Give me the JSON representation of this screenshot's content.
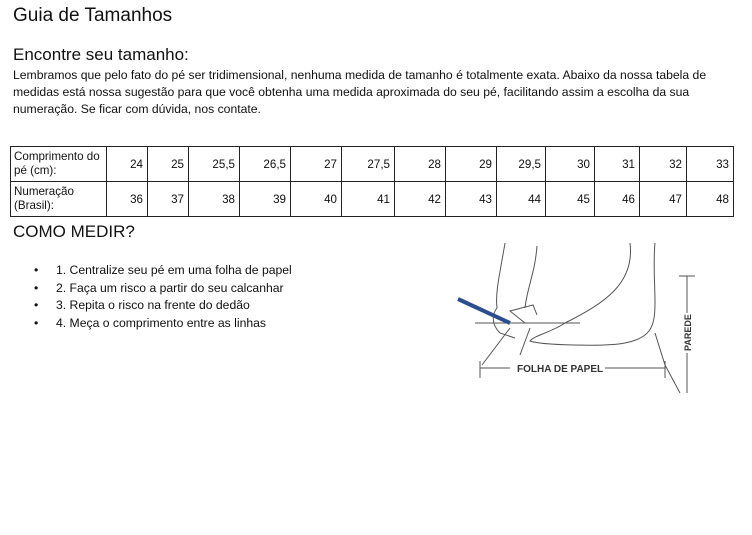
{
  "title": "Guia de Tamanhos",
  "subtitle": "Encontre seu tamanho:",
  "intro": "Lembramos que pelo fato do pé ser tridimensional, nenhuma medida de tamanho é totalmente exata. Abaixo da nossa tabela de medidas está nossa sugestão para que você obtenha uma medida aproximada do seu pé, facilitando assim a escolha da sua numeração. Se ficar com dúvida, nos contate.",
  "table": {
    "rows": [
      {
        "header": "Comprimento do pé (cm):",
        "values": [
          "24",
          "25",
          "25,5",
          "26,5",
          "27",
          "27,5",
          "28",
          "29",
          "29,5",
          "30",
          "31",
          "32",
          "33"
        ]
      },
      {
        "header": "Numeração (Brasil):",
        "values": [
          "36",
          "37",
          "38",
          "39",
          "40",
          "41",
          "42",
          "43",
          "44",
          "45",
          "46",
          "47",
          "48"
        ]
      }
    ]
  },
  "how_title": "COMO MEDIR?",
  "steps": [
    "1. Centralize seu pé em uma folha de papel",
    "2. Faça um risco a partir do seu calcanhar",
    "3. Repita o risco na frente do dedão",
    "4. Meça o comprimento entre as linhas"
  ],
  "figure": {
    "paper_label": "FOLHA DE PAPEL",
    "wall_label": "PAREDE",
    "pencil_color": "#2a4f8f"
  }
}
